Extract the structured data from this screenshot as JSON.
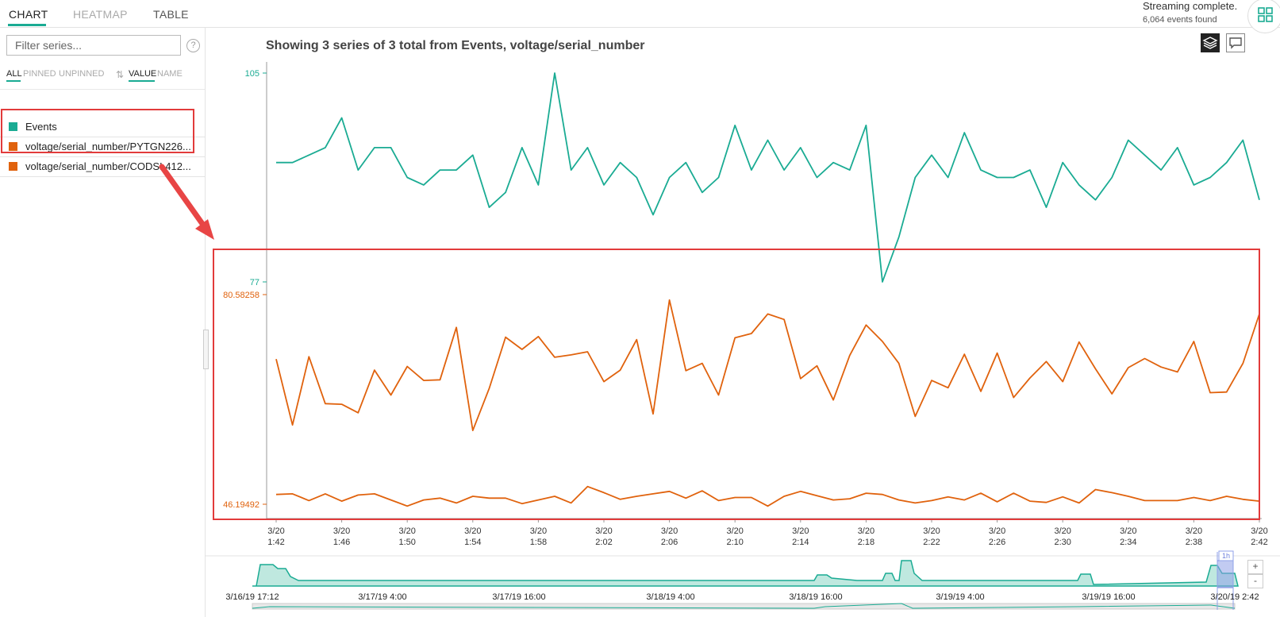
{
  "tabs": {
    "chart": "CHART",
    "heatmap": "HEATMAP",
    "table": "TABLE"
  },
  "status": {
    "line1": "Streaming complete.",
    "line2": "6,064 events found"
  },
  "sidebar": {
    "filter_placeholder": "Filter series...",
    "help": "?",
    "filters": {
      "all": "ALL",
      "pinned": "PINNED",
      "unpinned": "UNPINNED"
    },
    "sort": {
      "value": "VALUE",
      "name": "NAME"
    },
    "items": [
      {
        "label": "Events",
        "color": "#1aab93"
      },
      {
        "label": "voltage/serial_number/PYTGN226...",
        "color": "#e0620d"
      },
      {
        "label": "voltage/serial_number/CODSL412...",
        "color": "#e0620d"
      }
    ]
  },
  "chart_title": "Showing 3 series of 3 total from Events, voltage/serial_number",
  "chart_data": {
    "type": "line",
    "x": [
      "3/20 1:42",
      "3/20 1:43",
      "3/20 1:44",
      "3/20 1:45",
      "3/20 1:46",
      "3/20 1:47",
      "3/20 1:48",
      "3/20 1:49",
      "3/20 1:50",
      "3/20 1:51",
      "3/20 1:52",
      "3/20 1:53",
      "3/20 1:54",
      "3/20 1:55",
      "3/20 1:56",
      "3/20 1:57",
      "3/20 1:58",
      "3/20 1:59",
      "3/20 2:00",
      "3/20 2:01",
      "3/20 2:02",
      "3/20 2:03",
      "3/20 2:04",
      "3/20 2:05",
      "3/20 2:06",
      "3/20 2:07",
      "3/20 2:08",
      "3/20 2:09",
      "3/20 2:10",
      "3/20 2:11",
      "3/20 2:12",
      "3/20 2:13",
      "3/20 2:14",
      "3/20 2:15",
      "3/20 2:16",
      "3/20 2:17",
      "3/20 2:18",
      "3/20 2:19",
      "3/20 2:20",
      "3/20 2:21",
      "3/20 2:22",
      "3/20 2:23",
      "3/20 2:24",
      "3/20 2:25",
      "3/20 2:26",
      "3/20 2:27",
      "3/20 2:28",
      "3/20 2:29",
      "3/20 2:30",
      "3/20 2:31",
      "3/20 2:32",
      "3/20 2:33",
      "3/20 2:34",
      "3/20 2:35",
      "3/20 2:36",
      "3/20 2:37",
      "3/20 2:38",
      "3/20 2:39",
      "3/20 2:40",
      "3/20 2:41",
      "3/20 2:42"
    ],
    "x_ticks": [
      {
        "l1": "3/20",
        "l2": "1:42"
      },
      {
        "l1": "3/20",
        "l2": "1:46"
      },
      {
        "l1": "3/20",
        "l2": "1:50"
      },
      {
        "l1": "3/20",
        "l2": "1:54"
      },
      {
        "l1": "3/20",
        "l2": "1:58"
      },
      {
        "l1": "3/20",
        "l2": "2:02"
      },
      {
        "l1": "3/20",
        "l2": "2:06"
      },
      {
        "l1": "3/20",
        "l2": "2:10"
      },
      {
        "l1": "3/20",
        "l2": "2:14"
      },
      {
        "l1": "3/20",
        "l2": "2:18"
      },
      {
        "l1": "3/20",
        "l2": "2:22"
      },
      {
        "l1": "3/20",
        "l2": "2:26"
      },
      {
        "l1": "3/20",
        "l2": "2:30"
      },
      {
        "l1": "3/20",
        "l2": "2:34"
      },
      {
        "l1": "3/20",
        "l2": "2:38"
      },
      {
        "l1": "3/20",
        "l2": "2:42"
      }
    ],
    "axes": {
      "events": {
        "top_label": "105",
        "bottom_label": "77",
        "range": [
          77,
          105
        ],
        "color": "#1aab93"
      },
      "voltage": {
        "top_label": "80.58258",
        "bottom_label": "46.19492",
        "range": [
          46.19492,
          80.58258
        ],
        "color": "#e0620d"
      }
    },
    "series": [
      {
        "axis": "events",
        "color": "#1aab93",
        "values": [
          93,
          93,
          94,
          95,
          99,
          92,
          95,
          95,
          91,
          90,
          92,
          92,
          94,
          87,
          89,
          95,
          90,
          105,
          92,
          95,
          90,
          93,
          91,
          86,
          91,
          93,
          89,
          91,
          98,
          92,
          96,
          92,
          95,
          91,
          93,
          92,
          98,
          77,
          83,
          91,
          94,
          91,
          97,
          92,
          91,
          91,
          92,
          87,
          93,
          90,
          88,
          91,
          96,
          94,
          92,
          95,
          90,
          91,
          93,
          96,
          88
        ]
      },
      {
        "axis": "voltage",
        "color": "#e0620d",
        "values": [
          70.0,
          59.2,
          70.4,
          62.7,
          62.6,
          61.2,
          68.2,
          64.1,
          68.8,
          66.5,
          66.6,
          75.2,
          58.3,
          65.2,
          73.6,
          71.6,
          73.7,
          70.3,
          70.7,
          71.2,
          66.3,
          68.2,
          73.2,
          61.0,
          79.7,
          68.1,
          69.3,
          64.1,
          73.5,
          74.2,
          77.4,
          76.5,
          66.8,
          68.9,
          63.3,
          70.6,
          75.6,
          72.9,
          69.3,
          60.6,
          66.5,
          65.3,
          70.8,
          64.7,
          71.0,
          63.7,
          66.9,
          69.6,
          66.3,
          72.8,
          68.4,
          64.3,
          68.6,
          70.1,
          68.7,
          67.9,
          72.9,
          64.5,
          64.6,
          69.3,
          77.4
        ]
      },
      {
        "axis": "voltage",
        "color": "#e0620d",
        "values": [
          47.8,
          47.9,
          46.8,
          47.9,
          46.7,
          47.7,
          47.9,
          46.9,
          45.9,
          46.9,
          47.2,
          46.4,
          47.5,
          47.2,
          47.2,
          46.3,
          46.9,
          47.5,
          46.4,
          49.1,
          48.1,
          47.0,
          47.5,
          47.9,
          48.3,
          47.2,
          48.4,
          46.8,
          47.3,
          47.3,
          45.9,
          47.5,
          48.3,
          47.6,
          46.9,
          47.1,
          48.0,
          47.8,
          46.9,
          46.4,
          46.8,
          47.4,
          46.9,
          48.0,
          46.6,
          48.0,
          46.7,
          46.5,
          47.4,
          46.4,
          48.6,
          48.1,
          47.5,
          46.8,
          46.8,
          46.8,
          47.3,
          46.8,
          47.5,
          47.0,
          46.7
        ]
      }
    ],
    "grid": false,
    "legend": "left-sidebar"
  },
  "timeline": {
    "labels": [
      "3/16/19 17:12",
      "3/17/19 4:00",
      "3/17/19 16:00",
      "3/18/19 4:00",
      "3/18/19 16:00",
      "3/19/19 4:00",
      "3/19/19 16:00",
      "3/20/19 2:42"
    ],
    "brush_label": "1h",
    "zoom_in": "+",
    "zoom_out": "-"
  }
}
